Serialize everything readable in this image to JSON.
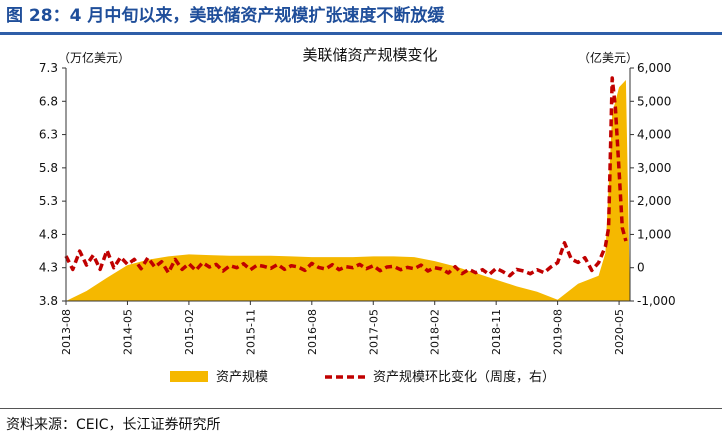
{
  "figure_title": "图 28：4 月中旬以来，美联储资产规模扩张速度不断放缓",
  "source": "资料来源：CEIC，长江证券研究所",
  "colors": {
    "area": "#f5b800",
    "line": "#c00000",
    "title": "#1f4e9a"
  },
  "chart_data": {
    "type": "area",
    "title": "美联储资产规模变化",
    "left_unit": "（万亿美元）",
    "right_unit": "（亿美元）",
    "x_ticks": [
      "2013-08",
      "2014-05",
      "2015-02",
      "2015-11",
      "2016-08",
      "2017-05",
      "2018-02",
      "2018-11",
      "2019-08",
      "2020-05"
    ],
    "y_left": {
      "min": 3.8,
      "max": 7.3,
      "ticks": [
        7.3,
        6.8,
        6.3,
        5.8,
        5.3,
        4.8,
        4.3,
        3.8
      ]
    },
    "y_right": {
      "min": -1000,
      "max": 6000,
      "ticks": [
        "6,000",
        "5,000",
        "4,000",
        "3,000",
        "2,000",
        "1,000",
        "0",
        "-1,000"
      ]
    },
    "legend": {
      "placement": "bottom",
      "entries": [
        "资产规模",
        "资产规模环比变化（周度，右）"
      ]
    },
    "series": [
      {
        "name": "资产规模",
        "axis": "left",
        "style": "area",
        "x": [
          "2013-08",
          "2013-11",
          "2014-02",
          "2014-05",
          "2014-08",
          "2014-11",
          "2015-02",
          "2015-05",
          "2015-08",
          "2015-11",
          "2016-02",
          "2016-05",
          "2016-08",
          "2016-11",
          "2017-02",
          "2017-05",
          "2017-08",
          "2017-11",
          "2018-02",
          "2018-05",
          "2018-08",
          "2018-11",
          "2019-02",
          "2019-05",
          "2019-08",
          "2019-11",
          "2020-02",
          "2020-03",
          "2020-04",
          "2020-05",
          "2020-06"
        ],
        "values": [
          3.65,
          3.95,
          4.15,
          4.34,
          4.42,
          4.47,
          4.5,
          4.49,
          4.48,
          4.48,
          4.48,
          4.47,
          4.46,
          4.46,
          4.46,
          4.47,
          4.47,
          4.46,
          4.4,
          4.32,
          4.22,
          4.12,
          4.02,
          3.94,
          3.82,
          4.06,
          4.18,
          4.52,
          6.62,
          7.01,
          7.12
        ]
      },
      {
        "name": "资产规模环比变化（周度，右）",
        "axis": "right",
        "style": "dashed-line",
        "x": [
          "2013-08",
          "2013-09",
          "2013-10",
          "2013-11",
          "2013-12",
          "2014-01",
          "2014-02",
          "2014-03",
          "2014-04",
          "2014-05",
          "2014-06",
          "2014-07",
          "2014-08",
          "2014-09",
          "2014-10",
          "2014-11",
          "2014-12",
          "2015-01",
          "2015-02",
          "2015-03",
          "2015-04",
          "2015-05",
          "2015-06",
          "2015-07",
          "2015-08",
          "2015-09",
          "2015-10",
          "2015-11",
          "2015-12",
          "2016-01",
          "2016-02",
          "2016-03",
          "2016-04",
          "2016-05",
          "2016-06",
          "2016-07",
          "2016-08",
          "2016-09",
          "2016-10",
          "2016-11",
          "2016-12",
          "2017-01",
          "2017-02",
          "2017-03",
          "2017-04",
          "2017-05",
          "2017-06",
          "2017-07",
          "2017-08",
          "2017-09",
          "2017-10",
          "2017-11",
          "2017-12",
          "2018-01",
          "2018-02",
          "2018-03",
          "2018-04",
          "2018-05",
          "2018-06",
          "2018-07",
          "2018-08",
          "2018-09",
          "2018-10",
          "2018-11",
          "2018-12",
          "2019-01",
          "2019-02",
          "2019-03",
          "2019-04",
          "2019-05",
          "2019-06",
          "2019-07",
          "2019-08",
          "2019-09",
          "2019-10",
          "2019-11",
          "2019-12",
          "2020-01",
          "2020-02",
          "2020-03",
          "2020-03-15",
          "2020-04",
          "2020-04-15",
          "2020-05",
          "2020-05-15",
          "2020-06"
        ],
        "values": [
          350,
          -50,
          500,
          80,
          380,
          -50,
          520,
          0,
          320,
          100,
          250,
          -30,
          300,
          20,
          180,
          -150,
          250,
          -50,
          120,
          -80,
          150,
          20,
          100,
          -100,
          60,
          0,
          120,
          -60,
          80,
          40,
          -20,
          100,
          -50,
          60,
          20,
          -80,
          130,
          10,
          -40,
          90,
          -60,
          30,
          0,
          100,
          -30,
          60,
          -90,
          20,
          40,
          -60,
          10,
          -30,
          80,
          -100,
          0,
          -40,
          -160,
          30,
          -180,
          -50,
          -150,
          -60,
          -200,
          -20,
          -120,
          -240,
          -50,
          -100,
          -180,
          -60,
          -150,
          20,
          150,
          750,
          260,
          160,
          300,
          -80,
          150,
          640,
          1200,
          5700,
          4800,
          2900,
          1200,
          800
        ]
      }
    ]
  }
}
